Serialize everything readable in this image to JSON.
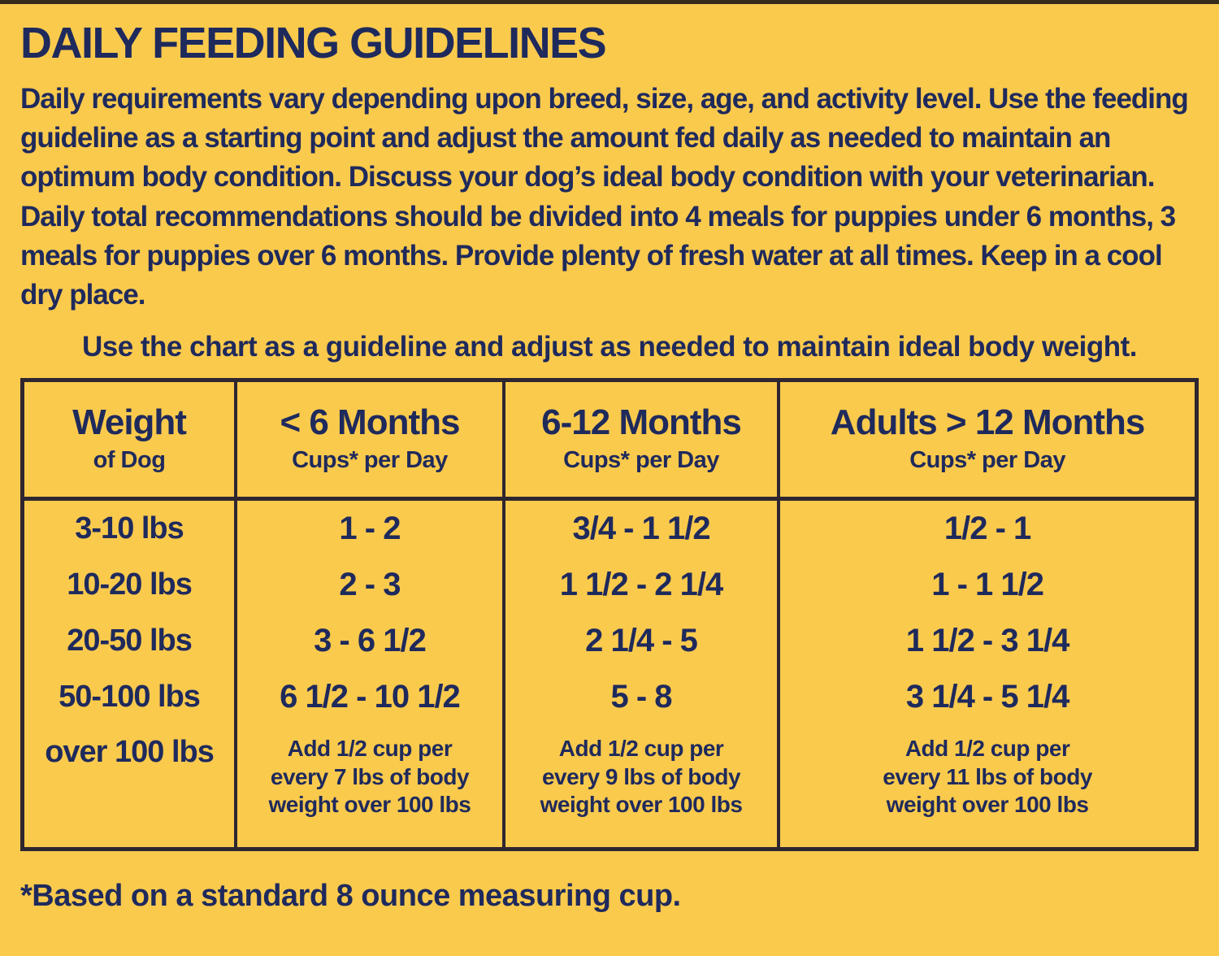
{
  "page": {
    "title": "DAILY FEEDING GUIDELINES",
    "intro": "Daily requirements vary depending upon breed, size, age, and activity level. Use the feeding guideline as a starting point and adjust the amount fed daily as needed to maintain an optimum body condition. Discuss your dog’s ideal body condition with your veterinarian. Daily total recommendations should be divided into 4 meals for puppies under 6 months, 3 meals for puppies over 6 months. Provide plenty of fresh water at all times. Keep in a cool dry place.",
    "chart_note": "Use the chart as a guideline and adjust as needed to maintain ideal body weight.",
    "footnote": "*Based on a standard 8 ounce measuring cup."
  },
  "colors": {
    "background_yellow": "#FACA4D",
    "text_navy": "#1F2A5C",
    "table_border": "#2E2630"
  },
  "table": {
    "columns": [
      {
        "title": "Weight",
        "subtitle": "of Dog"
      },
      {
        "title": "< 6 Months",
        "subtitle": "Cups* per Day"
      },
      {
        "title": "6-12 Months",
        "subtitle": "Cups* per Day"
      },
      {
        "title": "Adults > 12 Months",
        "subtitle": "Cups* per Day"
      }
    ],
    "rows": [
      {
        "weight": "3-10 lbs",
        "under6": "1 - 2",
        "m6to12": "3/4 - 1 1/2",
        "adult": "1/2 - 1"
      },
      {
        "weight": "10-20 lbs",
        "under6": "2 - 3",
        "m6to12": "1 1/2 - 2 1/4",
        "adult": "1 - 1 1/2"
      },
      {
        "weight": "20-50 lbs",
        "under6": "3 - 6 1/2",
        "m6to12": "2 1/4 - 5",
        "adult": "1 1/2 - 3 1/4"
      },
      {
        "weight": "50-100 lbs",
        "under6": "6 1/2 - 10 1/2",
        "m6to12": "5 - 8",
        "adult": "3 1/4 - 5 1/4"
      },
      {
        "weight": "over 100 lbs",
        "under6": "Add 1/2 cup per\nevery 7 lbs of body\nweight over 100 lbs",
        "m6to12": "Add 1/2 cup per\nevery 9 lbs of body\nweight over 100 lbs",
        "adult": "Add 1/2 cup per\nevery 11 lbs of body\nweight over 100 lbs"
      }
    ]
  }
}
